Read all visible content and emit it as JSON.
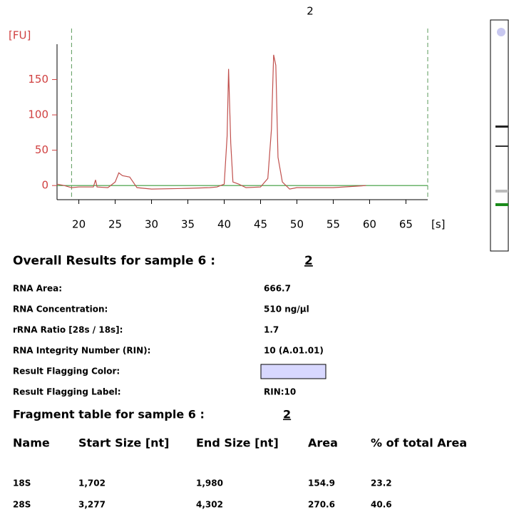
{
  "chart_data": {
    "type": "line",
    "title": "2",
    "y_label": "[FU]",
    "x_label": "[s]",
    "xlim": [
      17,
      68
    ],
    "ylim": [
      -20,
      200
    ],
    "xticks": [
      20,
      25,
      30,
      35,
      40,
      45,
      50,
      55,
      60,
      65
    ],
    "yticks": [
      0,
      50,
      100,
      150
    ],
    "marker_lines": [
      19,
      68
    ],
    "series": [
      {
        "color": "#c0504d",
        "x": [
          17,
          18,
          19,
          20,
          22,
          22.3,
          22.5,
          24,
          25,
          25.5,
          26,
          27,
          28,
          30,
          35,
          38,
          39,
          40,
          40.4,
          40.6,
          40.9,
          41.2,
          42,
          43,
          45,
          46,
          46.5,
          46.8,
          47.1,
          47.4,
          48,
          49,
          50,
          55,
          59.5
        ],
        "values": [
          2,
          0,
          -3,
          -2,
          -2,
          8,
          -2,
          -3,
          5,
          18,
          14,
          12,
          -3,
          -5,
          -4,
          -3,
          -2,
          2,
          70,
          165,
          60,
          5,
          2,
          -3,
          -2,
          10,
          80,
          185,
          170,
          40,
          5,
          -5,
          -3,
          -3,
          0
        ]
      },
      {
        "color": "#3a9a3a",
        "x": [
          17,
          68
        ],
        "values": [
          0,
          0
        ]
      }
    ]
  },
  "overall": {
    "heading": "Overall Results for sample 6 :",
    "sample": "2",
    "rows": [
      {
        "label": "RNA Area:",
        "value": "666.7"
      },
      {
        "label": "RNA Concentration:",
        "value": "510 ng/µl"
      },
      {
        "label": "rRNA Ratio [28s / 18s]:",
        "value": "1.7"
      },
      {
        "label": "RNA Integrity Number (RIN):",
        "value": "10   (A.01.01)"
      },
      {
        "label": "Result Flagging Color:",
        "color": "#d8d8ff"
      },
      {
        "label": "Result Flagging Label:",
        "value": "RIN:10"
      }
    ]
  },
  "fragment": {
    "heading": "Fragment table for sample 6 :",
    "sample": "2",
    "columns": [
      "Name",
      "Start Size [nt]",
      "End Size [nt]",
      "Area",
      "% of total Area"
    ],
    "rows": [
      [
        "18S",
        "1,702",
        "1,980",
        "154.9",
        "23.2"
      ],
      [
        "28S",
        "3,277",
        "4,302",
        "270.6",
        "40.6"
      ]
    ]
  }
}
